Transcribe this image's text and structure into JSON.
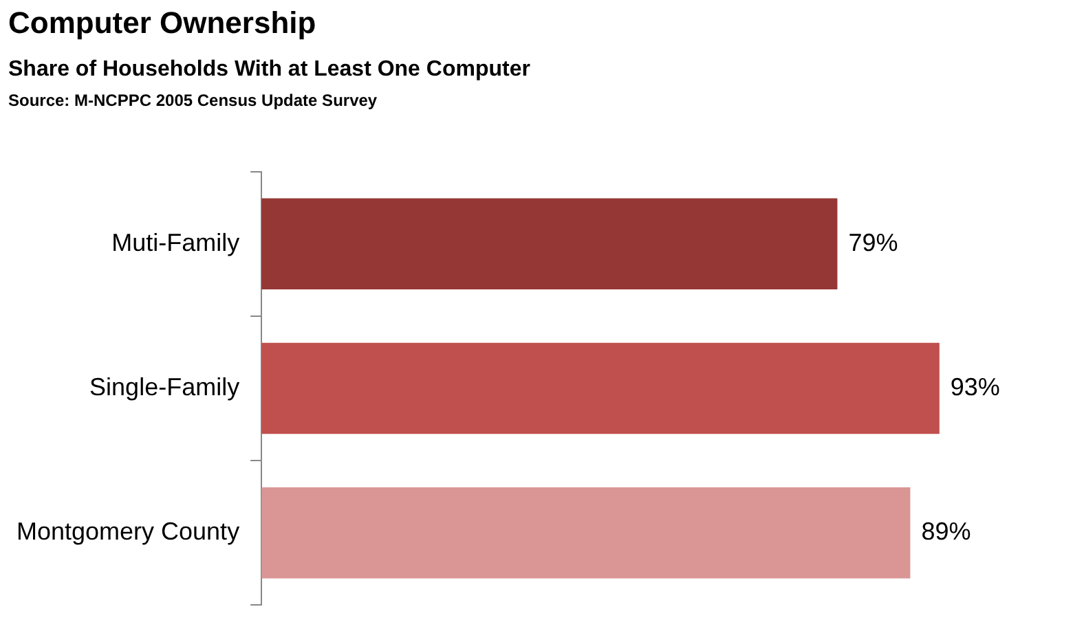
{
  "chart_data": {
    "type": "bar",
    "orientation": "horizontal",
    "title": "Computer Ownership",
    "subtitle": "Share of Households  With at Least One Computer",
    "annotations": [
      "Source: M-NCPPC 2005 Census Update Survey"
    ],
    "categories": [
      "Muti-Family",
      "Single-Family",
      "Montgomery County"
    ],
    "values": [
      79,
      93,
      89
    ],
    "colors": [
      "#953735",
      "#c0504d",
      "#d99694"
    ],
    "value_labels": [
      "79%",
      "93%",
      "89%"
    ],
    "grid": false,
    "legend": false
  }
}
